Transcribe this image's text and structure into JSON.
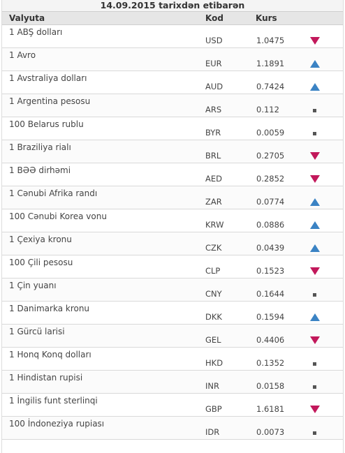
{
  "header": {
    "date_title": "14.09.2015 tarixdən etibarən",
    "col_name": "Valyuta",
    "col_code": "Kod",
    "col_rate": "Kurs"
  },
  "colors": {
    "up": "#3b83c4",
    "down": "#c2185b",
    "flat": "#555555"
  },
  "rows": [
    {
      "name": "1 ABŞ dolları",
      "code": "USD",
      "rate": "1.0475",
      "trend": "down"
    },
    {
      "name": "1 Avro",
      "code": "EUR",
      "rate": "1.1891",
      "trend": "up"
    },
    {
      "name": "1 Avstraliya dolları",
      "code": "AUD",
      "rate": "0.7424",
      "trend": "up"
    },
    {
      "name": "1 Argentina pesosu",
      "code": "ARS",
      "rate": "0.112",
      "trend": "flat"
    },
    {
      "name": "100 Belarus rublu",
      "code": "BYR",
      "rate": "0.0059",
      "trend": "flat"
    },
    {
      "name": "1 Braziliya rialı",
      "code": "BRL",
      "rate": "0.2705",
      "trend": "down"
    },
    {
      "name": "1 BƏƏ dirhəmi",
      "code": "AED",
      "rate": "0.2852",
      "trend": "down"
    },
    {
      "name": "1 Cənubi Afrika randı",
      "code": "ZAR",
      "rate": "0.0774",
      "trend": "up"
    },
    {
      "name": "100 Cənubi Korea vonu",
      "code": "KRW",
      "rate": "0.0886",
      "trend": "up"
    },
    {
      "name": "1 Çexiya kronu",
      "code": "CZK",
      "rate": "0.0439",
      "trend": "up"
    },
    {
      "name": "100 Çili pesosu",
      "code": "CLP",
      "rate": "0.1523",
      "trend": "down"
    },
    {
      "name": "1 Çin yuanı",
      "code": "CNY",
      "rate": "0.1644",
      "trend": "flat"
    },
    {
      "name": "1 Danimarka kronu",
      "code": "DKK",
      "rate": "0.1594",
      "trend": "up"
    },
    {
      "name": "1 Gürcü larisi",
      "code": "GEL",
      "rate": "0.4406",
      "trend": "down"
    },
    {
      "name": "1 Honq Konq dolları",
      "code": "HKD",
      "rate": "0.1352",
      "trend": "flat"
    },
    {
      "name": "1 Hindistan rupisi",
      "code": "INR",
      "rate": "0.0158",
      "trend": "flat"
    },
    {
      "name": "1 İngilis funt sterlinqi",
      "code": "GBP",
      "rate": "1.6181",
      "trend": "down"
    },
    {
      "name": "100 İndoneziya rupiası",
      "code": "IDR",
      "rate": "0.0073",
      "trend": "flat"
    }
  ]
}
